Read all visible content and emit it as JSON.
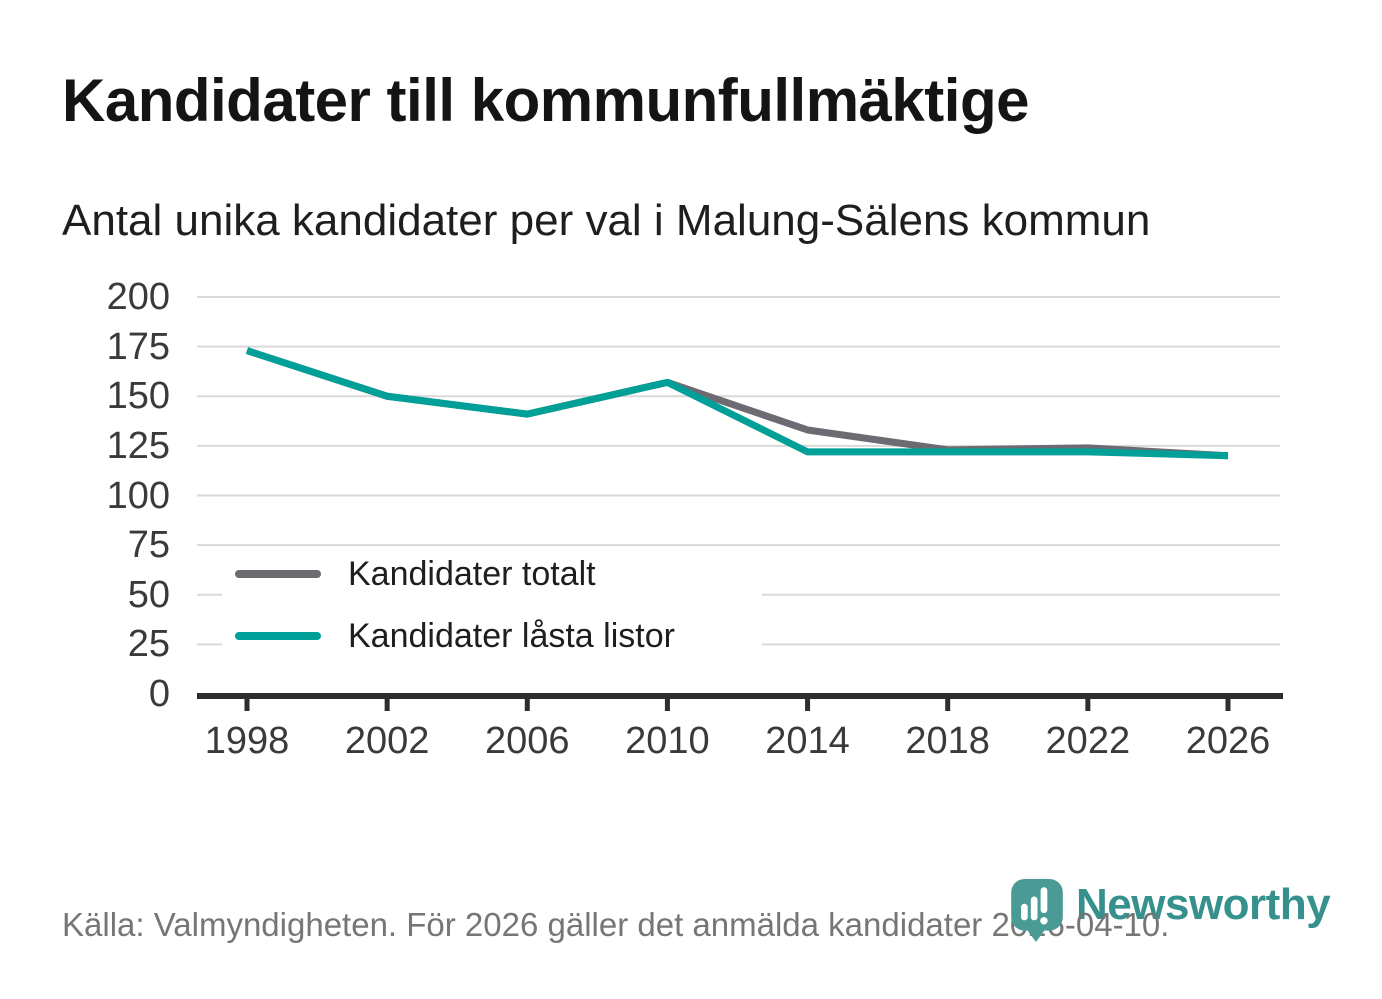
{
  "page": {
    "title": "Kandidater till kommunfullmäktige",
    "subtitle": "Antal unika kandidater per val i Malung-Sälens kommun",
    "source_note": "Källa: Valmyndigheten. För 2026 gäller det anmälda kandidater 2026-04-10.",
    "brand_name": "Newsworthy"
  },
  "colors": {
    "series_total": "#6e6a71",
    "series_locked": "#00a098",
    "grid": "#d9d9d9",
    "axis": "#2e2e2e",
    "tick_label": "#3a3a3a",
    "brand_teal": "#4a9b96",
    "wordmark_teal": "#36918d",
    "footer_gray": "#767676"
  },
  "chart_data": {
    "type": "line",
    "title": "Kandidater till kommunfullmäktige",
    "subtitle": "Antal unika kandidater per val i Malung-Sälens kommun",
    "categories": [
      1998,
      2002,
      2006,
      2010,
      2014,
      2018,
      2022,
      2026
    ],
    "series": [
      {
        "name": "Kandidater totalt",
        "color": "#6e6a71",
        "values": [
          173,
          150,
          141,
          157,
          133,
          123,
          124,
          120
        ]
      },
      {
        "name": "Kandidater låsta listor",
        "color": "#00a098",
        "values": [
          173,
          150,
          141,
          157,
          122,
          122,
          122,
          120
        ]
      }
    ],
    "xlabel": "",
    "ylabel": "",
    "ylim": [
      0,
      200
    ],
    "yticks": [
      0,
      25,
      50,
      75,
      100,
      125,
      150,
      175,
      200
    ],
    "grid": true,
    "legend_position": "inside-bottom-left"
  }
}
